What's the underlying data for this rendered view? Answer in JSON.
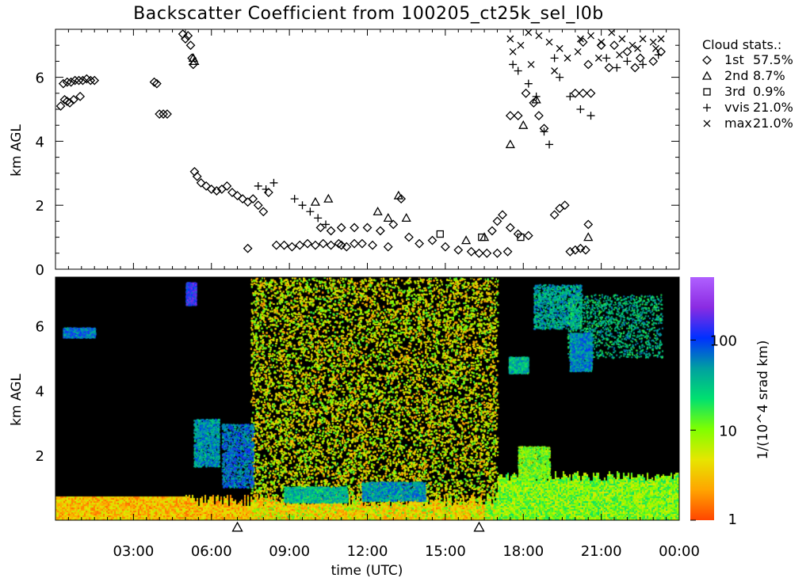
{
  "title": "Backscatter Coefficient from 100205_ct25k_sel_l0b",
  "colors": {
    "background": "#ffffff",
    "plot_background": "#000000",
    "colorbar": [
      "#ff4500",
      "#ffa500",
      "#e6e600",
      "#7fff00",
      "#00e070",
      "#00a0a0",
      "#0030ff",
      "#8a2be2",
      "#b060ff"
    ]
  },
  "chart_data": [
    {
      "type": "scatter",
      "name": "cloud-base-heights",
      "xlabel": "",
      "ylabel": "km AGL",
      "xlim": [
        0,
        24
      ],
      "ylim": [
        0,
        7.5
      ],
      "y_ticks": [
        0,
        2,
        4,
        6
      ],
      "legend": {
        "placement": "right",
        "title": "Cloud stats.:",
        "entries": [
          {
            "symbol": "diamond",
            "label": "1st",
            "value": "57.5%"
          },
          {
            "symbol": "triangle",
            "label": "2nd",
            "value": "8.7%"
          },
          {
            "symbol": "square",
            "label": "3rd",
            "value": "0.9%"
          },
          {
            "symbol": "plus",
            "label": "vvis",
            "value": "21.0%"
          },
          {
            "symbol": "cross",
            "label": "max",
            "value": "21.0%"
          }
        ]
      },
      "series": [
        {
          "symbol": "diamond",
          "points": [
            [
              0.2,
              5.1
            ],
            [
              0.35,
              5.3
            ],
            [
              0.45,
              5.25
            ],
            [
              0.55,
              5.2
            ],
            [
              0.7,
              5.3
            ],
            [
              0.95,
              5.4
            ],
            [
              0.3,
              5.8
            ],
            [
              0.45,
              5.85
            ],
            [
              0.6,
              5.85
            ],
            [
              0.75,
              5.9
            ],
            [
              0.9,
              5.9
            ],
            [
              1.05,
              5.9
            ],
            [
              1.2,
              5.95
            ],
            [
              1.35,
              5.9
            ],
            [
              1.5,
              5.9
            ],
            [
              3.8,
              5.85
            ],
            [
              3.9,
              5.8
            ],
            [
              4.0,
              4.85
            ],
            [
              4.15,
              4.85
            ],
            [
              4.3,
              4.85
            ],
            [
              4.9,
              7.35
            ],
            [
              5.0,
              7.2
            ],
            [
              5.1,
              7.3
            ],
            [
              5.2,
              7.0
            ],
            [
              5.25,
              6.6
            ],
            [
              5.3,
              6.4
            ],
            [
              5.35,
              3.05
            ],
            [
              5.45,
              2.9
            ],
            [
              5.6,
              2.7
            ],
            [
              5.8,
              2.6
            ],
            [
              6.0,
              2.5
            ],
            [
              6.2,
              2.45
            ],
            [
              6.4,
              2.5
            ],
            [
              6.6,
              2.6
            ],
            [
              6.8,
              2.4
            ],
            [
              7.0,
              2.3
            ],
            [
              7.2,
              2.2
            ],
            [
              7.4,
              2.1
            ],
            [
              7.6,
              2.2
            ],
            [
              7.8,
              2.0
            ],
            [
              8.0,
              1.8
            ],
            [
              8.2,
              2.4
            ],
            [
              7.4,
              0.65
            ],
            [
              8.5,
              0.75
            ],
            [
              8.8,
              0.75
            ],
            [
              9.1,
              0.7
            ],
            [
              9.4,
              0.75
            ],
            [
              9.7,
              0.8
            ],
            [
              10.0,
              0.75
            ],
            [
              10.3,
              0.8
            ],
            [
              10.6,
              0.75
            ],
            [
              10.9,
              0.8
            ],
            [
              11.2,
              0.7
            ],
            [
              11.5,
              0.8
            ],
            [
              10.2,
              1.3
            ],
            [
              10.6,
              1.2
            ],
            [
              11.0,
              1.3
            ],
            [
              11.5,
              1.3
            ],
            [
              12.0,
              1.3
            ],
            [
              12.5,
              1.2
            ],
            [
              13.0,
              1.4
            ],
            [
              13.3,
              2.2
            ],
            [
              13.6,
              1.0
            ],
            [
              14.0,
              0.8
            ],
            [
              14.5,
              0.9
            ],
            [
              15.0,
              0.7
            ],
            [
              15.5,
              0.6
            ],
            [
              16.0,
              0.55
            ],
            [
              16.3,
              0.5
            ],
            [
              16.6,
              0.5
            ],
            [
              17.0,
              0.5
            ],
            [
              17.4,
              0.55
            ],
            [
              11.0,
              0.75
            ],
            [
              11.8,
              0.8
            ],
            [
              12.2,
              0.75
            ],
            [
              12.8,
              0.7
            ],
            [
              16.8,
              1.2
            ],
            [
              17.0,
              1.5
            ],
            [
              17.2,
              1.7
            ],
            [
              17.5,
              1.3
            ],
            [
              17.8,
              1.1
            ],
            [
              18.2,
              1.05
            ],
            [
              17.5,
              4.8
            ],
            [
              17.8,
              4.8
            ],
            [
              18.1,
              5.5
            ],
            [
              18.4,
              5.2
            ],
            [
              18.6,
              4.8
            ],
            [
              18.8,
              4.4
            ],
            [
              19.2,
              1.7
            ],
            [
              19.4,
              1.9
            ],
            [
              19.6,
              2.0
            ],
            [
              19.8,
              0.55
            ],
            [
              20.0,
              0.6
            ],
            [
              20.2,
              0.65
            ],
            [
              20.4,
              0.6
            ],
            [
              20.5,
              1.4
            ],
            [
              20.0,
              5.5
            ],
            [
              20.3,
              5.5
            ],
            [
              20.6,
              5.5
            ],
            [
              20.3,
              7.1
            ],
            [
              21.0,
              7.0
            ],
            [
              21.5,
              7.0
            ],
            [
              22.0,
              6.8
            ],
            [
              22.5,
              6.6
            ],
            [
              23.0,
              6.5
            ],
            [
              23.3,
              6.8
            ],
            [
              20.5,
              6.4
            ],
            [
              21.3,
              6.3
            ],
            [
              22.3,
              6.3
            ]
          ]
        },
        {
          "symbol": "triangle",
          "points": [
            [
              5.3,
              6.6
            ],
            [
              5.35,
              6.5
            ],
            [
              10.0,
              2.1
            ],
            [
              10.5,
              2.2
            ],
            [
              12.4,
              1.8
            ],
            [
              12.8,
              1.6
            ],
            [
              13.2,
              2.3
            ],
            [
              13.5,
              1.6
            ],
            [
              15.8,
              0.9
            ],
            [
              16.5,
              1.0
            ],
            [
              17.5,
              3.9
            ],
            [
              18.0,
              4.5
            ],
            [
              18.5,
              5.3
            ],
            [
              20.5,
              1.0
            ]
          ]
        },
        {
          "symbol": "square",
          "points": [
            [
              14.8,
              1.1
            ],
            [
              16.4,
              1.0
            ],
            [
              17.9,
              1.0
            ]
          ]
        },
        {
          "symbol": "plus",
          "points": [
            [
              7.8,
              2.6
            ],
            [
              8.1,
              2.5
            ],
            [
              8.4,
              2.7
            ],
            [
              9.2,
              2.2
            ],
            [
              9.5,
              2.0
            ],
            [
              9.8,
              1.8
            ],
            [
              10.1,
              1.6
            ],
            [
              10.4,
              1.4
            ],
            [
              17.6,
              6.4
            ],
            [
              17.8,
              6.2
            ],
            [
              18.2,
              5.8
            ],
            [
              18.5,
              5.4
            ],
            [
              18.8,
              4.3
            ],
            [
              19.0,
              3.9
            ],
            [
              19.2,
              6.6
            ],
            [
              19.4,
              6.0
            ],
            [
              19.8,
              5.4
            ],
            [
              20.2,
              5.0
            ],
            [
              20.6,
              4.8
            ],
            [
              21.2,
              6.6
            ],
            [
              21.6,
              6.3
            ],
            [
              22.0,
              6.5
            ],
            [
              22.6,
              6.4
            ],
            [
              23.2,
              6.7
            ]
          ]
        },
        {
          "symbol": "cross",
          "points": [
            [
              17.5,
              7.2
            ],
            [
              17.9,
              7.0
            ],
            [
              18.2,
              7.4
            ],
            [
              18.6,
              7.3
            ],
            [
              19.0,
              7.1
            ],
            [
              19.4,
              6.9
            ],
            [
              19.7,
              6.6
            ],
            [
              20.2,
              7.2
            ],
            [
              20.6,
              7.3
            ],
            [
              21.0,
              7.1
            ],
            [
              21.4,
              7.4
            ],
            [
              21.8,
              7.2
            ],
            [
              22.2,
              7.0
            ],
            [
              22.6,
              7.2
            ],
            [
              23.0,
              7.1
            ],
            [
              23.3,
              7.2
            ],
            [
              17.6,
              6.8
            ],
            [
              18.3,
              6.4
            ],
            [
              19.2,
              6.2
            ],
            [
              20.1,
              6.8
            ],
            [
              20.9,
              6.6
            ],
            [
              21.7,
              6.7
            ],
            [
              22.4,
              6.9
            ],
            [
              23.1,
              6.9
            ]
          ]
        }
      ]
    },
    {
      "type": "heatmap",
      "name": "backscatter-coefficient",
      "xlabel": "time (UTC)",
      "ylabel": "km AGL",
      "xlim": [
        0,
        24
      ],
      "ylim": [
        0,
        7.5
      ],
      "x_ticks": [
        3,
        6,
        9,
        12,
        15,
        18,
        21,
        24
      ],
      "x_tick_labels": [
        "03:00",
        "06:00",
        "09:00",
        "12:00",
        "15:00",
        "18:00",
        "21:00",
        "00:00"
      ],
      "y_ticks": [
        2,
        4,
        6
      ],
      "colorbar": {
        "label": "1/(10^4 srad km)",
        "scale": "log",
        "range": [
          1,
          500
        ],
        "ticks": [
          1,
          10,
          100
        ]
      },
      "markers": [
        {
          "symbol": "triangle",
          "x": 7.0
        },
        {
          "symbol": "triangle",
          "x": 16.3
        }
      ]
    }
  ]
}
